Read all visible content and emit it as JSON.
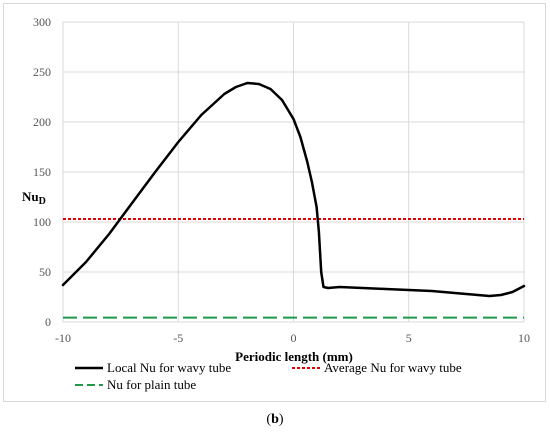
{
  "caption": {
    "open": "(",
    "letter": "b",
    "close": ")"
  },
  "chart_data": {
    "type": "line",
    "xlabel": "Periodic length (mm)",
    "ylabel": "Nu",
    "ylabel_sub": "D",
    "xlim": [
      -10,
      10
    ],
    "ylim": [
      0,
      300
    ],
    "xticks": [
      -10,
      -5,
      0,
      5,
      10
    ],
    "yticks": [
      0,
      50,
      100,
      150,
      200,
      250,
      300
    ],
    "grid": true,
    "legend_position": "bottom",
    "series": [
      {
        "name": "Local Nu for wavy tube",
        "color": "#000000",
        "style": "solid",
        "x": [
          -10,
          -9,
          -8,
          -7,
          -6,
          -5,
          -4,
          -3,
          -2.5,
          -2,
          -1.5,
          -1,
          -0.5,
          0,
          0.3,
          0.6,
          0.8,
          1.0,
          1.1,
          1.2,
          1.3,
          1.5,
          2,
          3,
          4,
          5,
          6,
          7,
          8,
          8.5,
          9,
          9.5,
          10
        ],
        "y": [
          37,
          60,
          88,
          119,
          150,
          180,
          207,
          228,
          235,
          239,
          238,
          233,
          222,
          203,
          185,
          160,
          140,
          115,
          90,
          50,
          35,
          34,
          35,
          34,
          33,
          32,
          31,
          29,
          27,
          26,
          27,
          30,
          36
        ]
      },
      {
        "name": "Average Nu for wavy tube",
        "color": "#e00000",
        "style": "dotted",
        "x": [
          -10,
          10
        ],
        "y": [
          103,
          103
        ]
      },
      {
        "name": "Nu for plain tube",
        "color": "#1e9a4a",
        "style": "dashed",
        "x": [
          -10,
          10
        ],
        "y": [
          4.4,
          4.4
        ]
      }
    ]
  }
}
